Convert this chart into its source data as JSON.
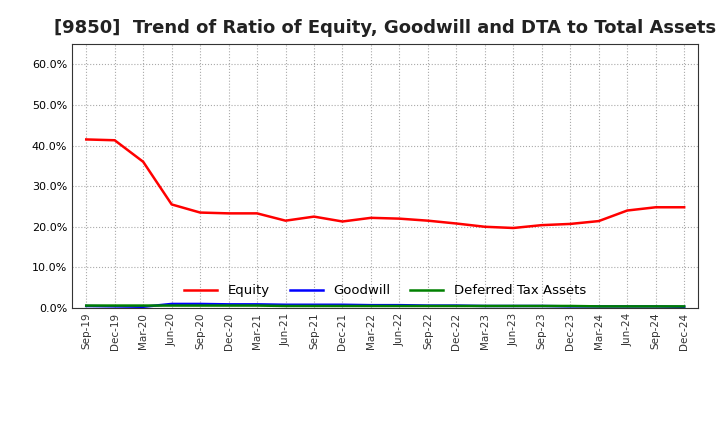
{
  "title": "[9850]  Trend of Ratio of Equity, Goodwill and DTA to Total Assets",
  "x_labels": [
    "Sep-19",
    "Dec-19",
    "Mar-20",
    "Jun-20",
    "Sep-20",
    "Dec-20",
    "Mar-21",
    "Jun-21",
    "Sep-21",
    "Dec-21",
    "Mar-22",
    "Jun-22",
    "Sep-22",
    "Dec-22",
    "Mar-23",
    "Jun-23",
    "Sep-23",
    "Dec-23",
    "Mar-24",
    "Jun-24",
    "Sep-24",
    "Dec-24"
  ],
  "equity": [
    0.415,
    0.413,
    0.36,
    0.255,
    0.235,
    0.233,
    0.233,
    0.215,
    0.225,
    0.213,
    0.222,
    0.22,
    0.215,
    0.208,
    0.2,
    0.197,
    0.204,
    0.207,
    0.214,
    0.24,
    0.248,
    0.248
  ],
  "goodwill": [
    0.005,
    0.004,
    0.003,
    0.01,
    0.01,
    0.009,
    0.009,
    0.008,
    0.008,
    0.008,
    0.007,
    0.007,
    0.006,
    0.006,
    0.005,
    0.005,
    0.005,
    0.004,
    0.004,
    0.004,
    0.004,
    0.003
  ],
  "dta": [
    0.006,
    0.006,
    0.006,
    0.006,
    0.006,
    0.006,
    0.006,
    0.005,
    0.005,
    0.005,
    0.005,
    0.005,
    0.005,
    0.005,
    0.005,
    0.005,
    0.005,
    0.005,
    0.004,
    0.004,
    0.004,
    0.004
  ],
  "equity_color": "#ff0000",
  "goodwill_color": "#0000ff",
  "dta_color": "#008000",
  "ylim": [
    0.0,
    0.65
  ],
  "yticks": [
    0.0,
    0.1,
    0.2,
    0.3,
    0.4,
    0.5,
    0.6
  ],
  "bg_color": "#ffffff",
  "grid_color": "#aaaaaa",
  "title_fontsize": 13,
  "line_width": 1.8,
  "legend_labels": [
    "Equity",
    "Goodwill",
    "Deferred Tax Assets"
  ]
}
